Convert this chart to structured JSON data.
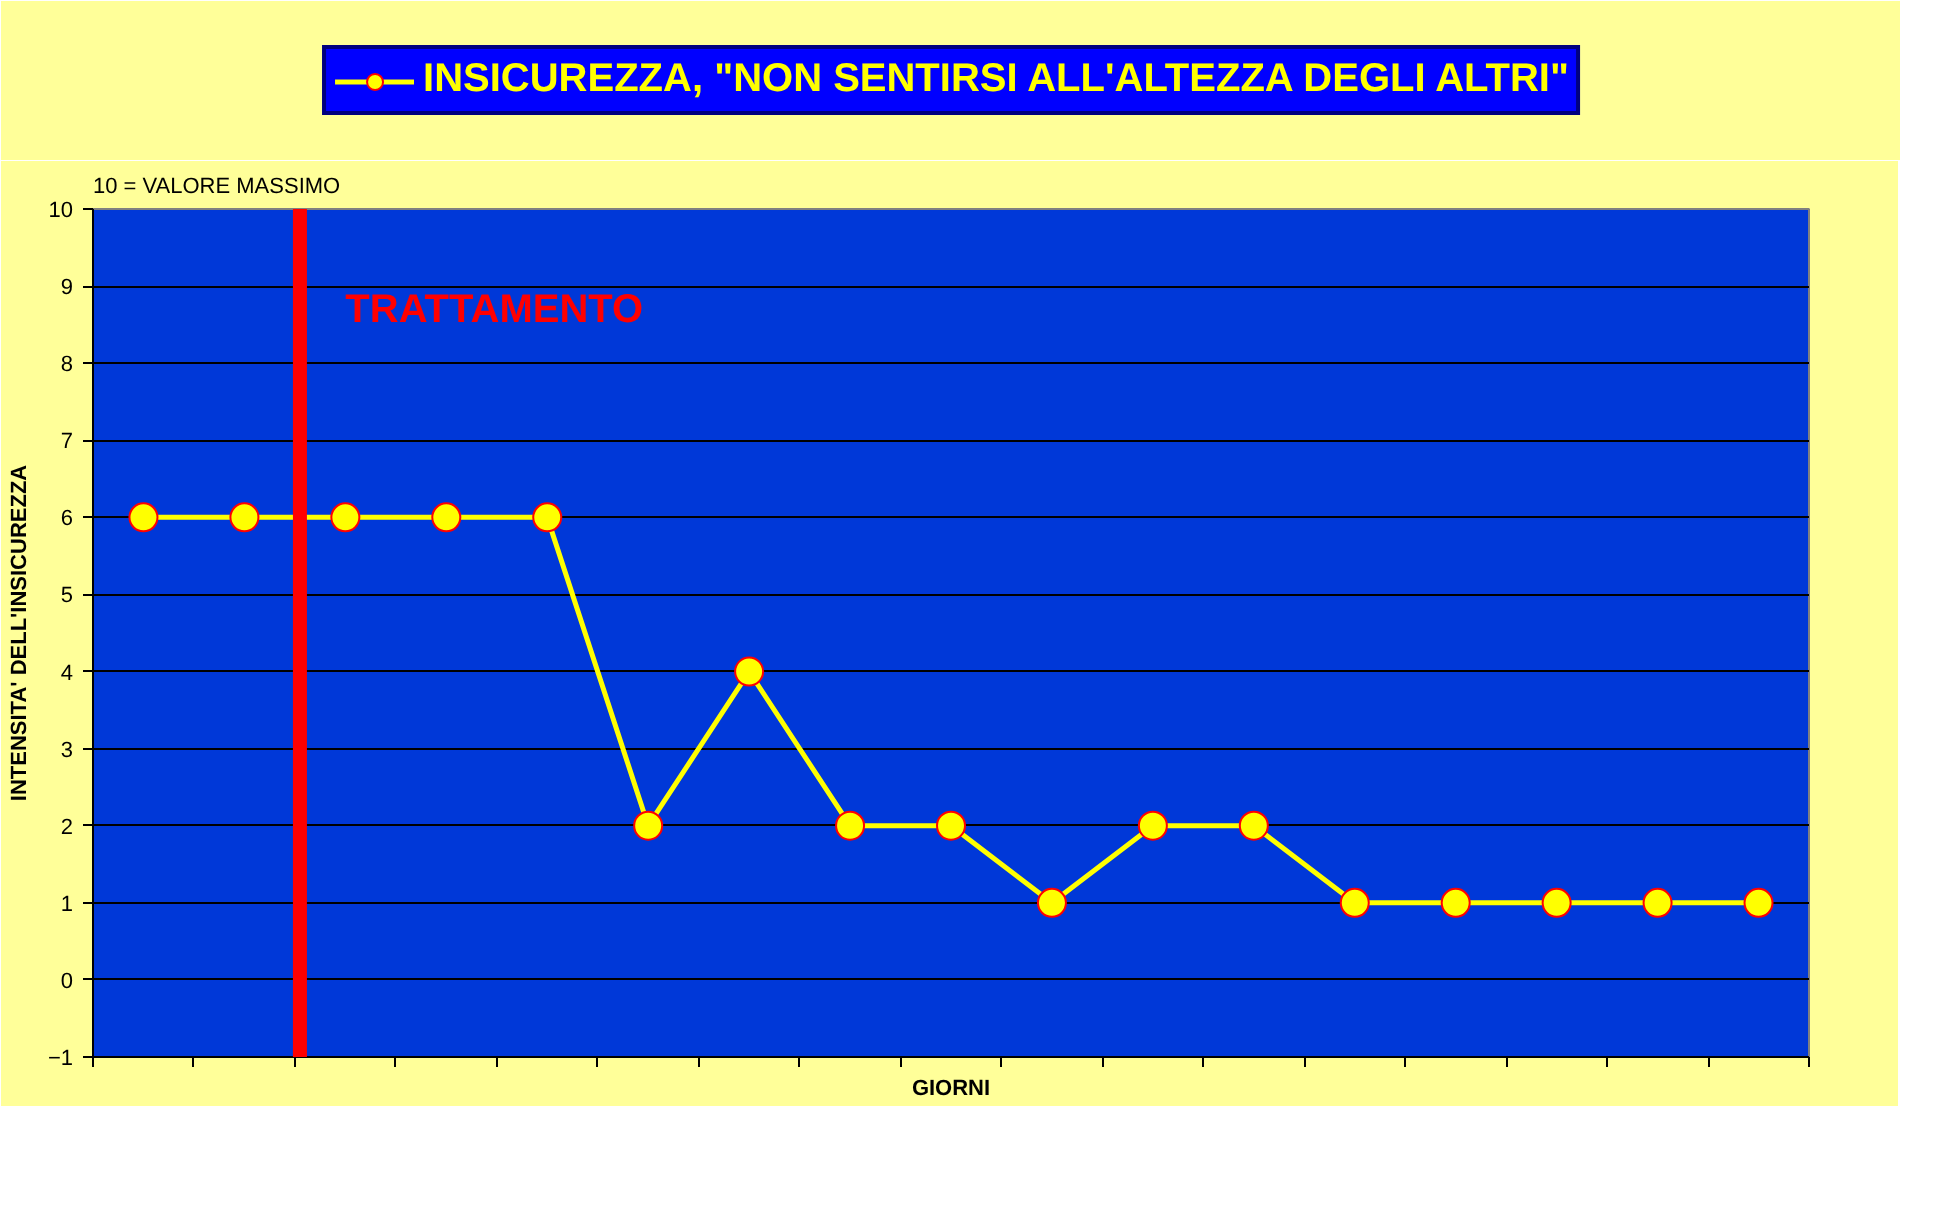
{
  "chart_data": {
    "type": "line",
    "xlabel": "GIORNI",
    "ylabel": "INTENSITA' DELL'INSICUREZZA",
    "annotations": [
      "10 = VALORE MASSIMO",
      "TRATTAMENTO"
    ],
    "categories": [
      null,
      null,
      null,
      null,
      null,
      null,
      null,
      null,
      null,
      null,
      null,
      null,
      null,
      null,
      null,
      null,
      null
    ],
    "series": [
      {
        "name": "INSICUREZZA, \"NON SENTIRSI ALL'ALTEZZA DEGLI ALTRI\"",
        "color": "#ffff00",
        "values": [
          6,
          6,
          6,
          6,
          6,
          2,
          4,
          2,
          2,
          1,
          2,
          2,
          1,
          1,
          1,
          1,
          1
        ]
      }
    ],
    "ylim": [
      -1,
      10
    ],
    "yticks": [
      -1,
      0,
      1,
      2,
      3,
      4,
      5,
      6,
      7,
      8,
      9,
      10
    ],
    "grid": "y",
    "legend": "top",
    "marker": "circle",
    "line_style": "solid"
  }
}
